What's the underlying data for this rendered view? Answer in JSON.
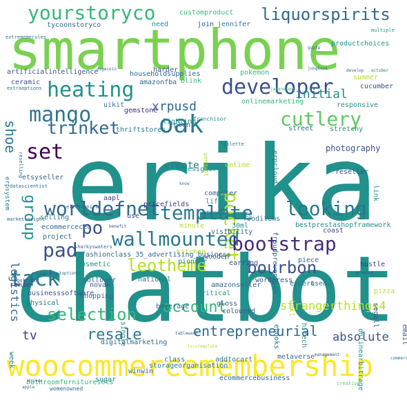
{
  "title": "",
  "words": [
    {
      "text": "smartphone",
      "color": "#7ad151"
    },
    {
      "text": "erika",
      "color": "#21918c"
    },
    {
      "text": "chatbot",
      "color": "#21918c"
    },
    {
      "text": "woocommercemembership",
      "color": "#fde725"
    },
    {
      "text": "yourstoryco",
      "color": "#35b779"
    },
    {
      "text": "liquorspirits",
      "color": "#31688e"
    },
    {
      "text": "developer",
      "color": "#3b528b"
    },
    {
      "text": "heating",
      "color": "#21918c"
    },
    {
      "text": "mango",
      "color": "#2a788e"
    },
    {
      "text": "cutlery",
      "color": "#5ec962"
    },
    {
      "text": "oak",
      "color": "#2a788e"
    },
    {
      "text": "trinket",
      "color": "#31688e"
    },
    {
      "text": "set",
      "color": "#440154"
    },
    {
      "text": "pocket",
      "color": "#b5de2b"
    },
    {
      "text": "template",
      "color": "#2a788e"
    },
    {
      "text": "worldefnet",
      "color": "#31688e"
    },
    {
      "text": "looking",
      "color": "#2a788e"
    },
    {
      "text": "wallmounted",
      "color": "#2a788e"
    },
    {
      "text": "group",
      "color": "#21918c"
    },
    {
      "text": "bootstrap",
      "color": "#472d7b"
    },
    {
      "text": "pad",
      "color": "#3b528b"
    },
    {
      "text": "po",
      "color": "#3b528b"
    },
    {
      "text": "leotheme",
      "color": "#b5de2b"
    },
    {
      "text": "tack",
      "color": "#2a788e"
    },
    {
      "text": "bourbon",
      "color": "#3b528b"
    },
    {
      "text": "selection",
      "color": "#35b779"
    },
    {
      "text": "account",
      "color": "#35b779"
    },
    {
      "text": "strangerthings4",
      "color": "#b5de2b"
    },
    {
      "text": "resale",
      "color": "#2a788e"
    },
    {
      "text": "entrepreneurial",
      "color": "#31688e"
    },
    {
      "text": "absolute",
      "color": "#3b528b"
    },
    {
      "text": "shoe",
      "color": "#2a788e"
    },
    {
      "text": "xrpusd",
      "color": "#31688e"
    },
    {
      "text": "initial",
      "color": "#21918c"
    },
    {
      "text": "create",
      "color": "#2a788e"
    },
    {
      "text": "tv",
      "color": "#443983"
    },
    {
      "text": "logistics",
      "color": "#31688e"
    },
    {
      "text": "photography",
      "color": "#3b528b"
    },
    {
      "text": "customproduct",
      "color": "#35b779"
    },
    {
      "text": "tycoonstoryco",
      "color": "#31688e"
    },
    {
      "text": "need",
      "color": "#21918c"
    },
    {
      "text": "join",
      "color": "#3b528b"
    },
    {
      "text": "jennifer",
      "color": "#2a788e"
    },
    {
      "text": "productchoices",
      "color": "#21918c"
    },
    {
      "text": "artificialintelligence",
      "color": "#3b528b"
    },
    {
      "text": "householdsupplies",
      "color": "#31688e"
    },
    {
      "text": "amazonfba",
      "color": "#31688e"
    },
    {
      "text": "harder",
      "color": "#3b528b"
    },
    {
      "text": "blink",
      "color": "#35b779"
    },
    {
      "text": "pokemon",
      "color": "#35b779"
    },
    {
      "text": "summer",
      "color": "#b5de2b"
    },
    {
      "text": "cucumber",
      "color": "#3b528b"
    },
    {
      "text": "responsive",
      "color": "#21918c"
    },
    {
      "text": "stretchy",
      "color": "#21918c"
    },
    {
      "text": "street",
      "color": "#31688e"
    },
    {
      "text": "ceramic",
      "color": "#3b528b"
    },
    {
      "text": "uikit",
      "color": "#2a788e"
    },
    {
      "text": "gemstone",
      "color": "#472d7b"
    },
    {
      "text": "lighting",
      "color": "#21918c"
    },
    {
      "text": "thriftstores",
      "color": "#2a788e"
    },
    {
      "text": "franchisor",
      "color": "#21918c"
    },
    {
      "text": "plan",
      "color": "#31688e"
    },
    {
      "text": "onlinemarketing",
      "color": "#35b779"
    },
    {
      "text": "ontime",
      "color": "#b5de2b"
    },
    {
      "text": "erpcloud",
      "color": "#2a788e"
    },
    {
      "text": "designer",
      "color": "#21918c"
    },
    {
      "text": "etsyseller",
      "color": "#31688e"
    },
    {
      "text": "erpsystem",
      "color": "#2a788e"
    },
    {
      "text": "aapl",
      "color": "#443983"
    },
    {
      "text": "computer",
      "color": "#31688e"
    },
    {
      "text": "reseller",
      "color": "#3b528b"
    },
    {
      "text": "pricefields",
      "color": "#443983"
    },
    {
      "text": "life",
      "color": "#21918c"
    },
    {
      "text": "selling",
      "color": "#2a788e"
    },
    {
      "text": "use",
      "color": "#3b528b"
    },
    {
      "text": "dtc",
      "color": "#21918c"
    },
    {
      "text": "fraudprevention",
      "color": "#31688e"
    },
    {
      "text": "link",
      "color": "#21918c"
    },
    {
      "text": "bestprestashopframework",
      "color": "#21918c"
    },
    {
      "text": "visibility",
      "color": "#31688e"
    },
    {
      "text": "fooditems",
      "color": "#2a788e"
    },
    {
      "text": "30ml",
      "color": "#21918c"
    },
    {
      "text": "minute",
      "color": "#b5de2b"
    },
    {
      "text": "ecommerceceo",
      "color": "#31688e"
    },
    {
      "text": "project",
      "color": "#31688e"
    },
    {
      "text": "kitchen",
      "color": "#b5de2b"
    },
    {
      "text": "coast",
      "color": "#3b528b"
    },
    {
      "text": "wooden",
      "color": "#3b528b"
    },
    {
      "text": "fashionclass_35_advertising_business",
      "color": "#31688e"
    },
    {
      "text": "cosmetic",
      "color": "#21918c"
    },
    {
      "text": "pioneer",
      "color": "#21918c"
    },
    {
      "text": "earring",
      "color": "#3b528b"
    },
    {
      "text": "piece",
      "color": "#31688e"
    },
    {
      "text": "hustle",
      "color": "#443983"
    },
    {
      "text": "national",
      "color": "#2a788e"
    },
    {
      "text": "wordpress",
      "color": "#3b528b"
    },
    {
      "text": "novak",
      "color": "#3b528b"
    },
    {
      "text": "amazonseller",
      "color": "#31688e"
    },
    {
      "text": "expert",
      "color": "#2a788e"
    },
    {
      "text": "used",
      "color": "#2a788e"
    },
    {
      "text": "renie",
      "color": "#443983"
    },
    {
      "text": "follower",
      "color": "#31688e"
    },
    {
      "text": "shopping",
      "color": "#31688e"
    },
    {
      "text": "hall",
      "color": "#b5de2b"
    },
    {
      "text": "businesssoftware",
      "color": "#3b528b"
    },
    {
      "text": "physical",
      "color": "#2a788e"
    },
    {
      "text": "critical",
      "color": "#21918c"
    },
    {
      "text": "single",
      "color": "#21918c"
    },
    {
      "text": "beverage",
      "color": "#31688e"
    },
    {
      "text": "gloss",
      "color": "#3b528b"
    },
    {
      "text": "coloured",
      "color": "#3b528b"
    },
    {
      "text": "ebooks",
      "color": "#2a788e"
    },
    {
      "text": "hitech",
      "color": "#21918c"
    },
    {
      "text": "onlinearbitrage",
      "color": "#21918c"
    },
    {
      "text": "segall",
      "color": "#3b528b"
    },
    {
      "text": "pizza",
      "color": "#b5de2b"
    },
    {
      "text": "email",
      "color": "#3b528b"
    },
    {
      "text": "digitalmarketing",
      "color": "#31688e"
    },
    {
      "text": "class",
      "color": "#2a788e"
    },
    {
      "text": "addtocart",
      "color": "#2a788e"
    },
    {
      "text": "metaverse",
      "color": "#31688e"
    },
    {
      "text": "week",
      "color": "#2a788e"
    },
    {
      "text": "storageorganisation",
      "color": "#2a788e"
    },
    {
      "text": "winwin",
      "color": "#31688e"
    },
    {
      "text": "sugar",
      "color": "#2a788e"
    },
    {
      "text": "ecommercebusiness",
      "color": "#31688e"
    },
    {
      "text": "bathroomfurnituresets",
      "color": "#35b779"
    },
    {
      "text": "womenowned",
      "color": "#31688e"
    },
    {
      "text": "creative",
      "color": "#5ec962"
    },
    {
      "text": "extrememerules",
      "color": "#2a788e"
    },
    {
      "text": "multiple",
      "color": "#21918c"
    },
    {
      "text": "gupta",
      "color": "#31688e"
    },
    {
      "text": "extraoptions",
      "color": "#31688e"
    },
    {
      "text": "dogecoin",
      "color": "#31688e"
    },
    {
      "text": "jungkook",
      "color": "#31688e"
    },
    {
      "text": "develop",
      "color": "#31688e"
    },
    {
      "text": "october",
      "color": "#2a788e"
    },
    {
      "text": "reselling",
      "color": "#31688e"
    },
    {
      "text": "datascientist",
      "color": "#31688e"
    },
    {
      "text": "marketinsight",
      "color": "#31688e"
    },
    {
      "text": "sharkyswaters",
      "color": "#31688e"
    },
    {
      "text": "extraproductoptions",
      "color": "#31688e"
    },
    {
      "text": "goliath",
      "color": "#3b528b"
    },
    {
      "text": "electronics",
      "color": "#3b528b"
    },
    {
      "text": "referral",
      "color": "#3b528b"
    },
    {
      "text": "benefit",
      "color": "#3b528b"
    },
    {
      "text": "management",
      "color": "#3b528b"
    },
    {
      "text": "growing",
      "color": "#3b528b"
    },
    {
      "text": "commerce",
      "color": "#31688e"
    },
    {
      "text": "know",
      "color": "#2a788e"
    },
    {
      "text": "tableware",
      "color": "#31688e"
    },
    {
      "text": "pendant",
      "color": "#b5de2b"
    },
    {
      "text": "toilette",
      "color": "#2a788e"
    },
    {
      "text": "driver",
      "color": "#3b528b"
    },
    {
      "text": "leistemplate",
      "color": "#b5de2b"
    },
    {
      "text": "apple",
      "color": "#31688e"
    },
    {
      "text": "japanesegp",
      "color": "#35b779"
    },
    {
      "text": "fashionboutiquestore",
      "color": "#31688e"
    }
  ]
}
